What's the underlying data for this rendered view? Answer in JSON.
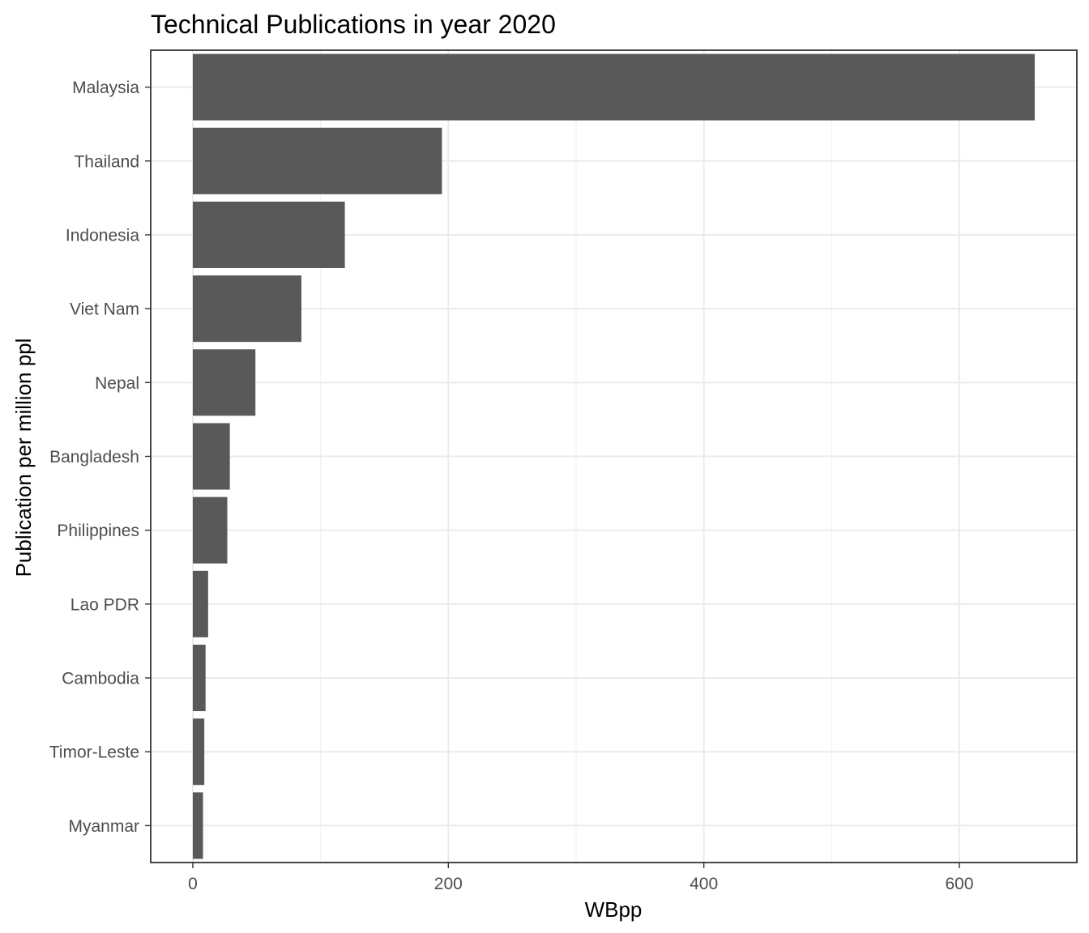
{
  "chart_data": {
    "type": "bar",
    "orientation": "horizontal",
    "title": "Technical Publications in year 2020",
    "xlabel": "WBpp",
    "ylabel": "Publication per million ppl",
    "categories": [
      "Malaysia",
      "Thailand",
      "Indonesia",
      "Viet Nam",
      "Nepal",
      "Bangladesh",
      "Philippines",
      "Lao PDR",
      "Cambodia",
      "Timor-Leste",
      "Myanmar"
    ],
    "values": [
      659,
      195,
      119,
      85,
      49,
      29,
      27,
      12,
      10,
      9,
      8
    ],
    "xlim": [
      -32.95,
      691.95
    ],
    "x_ticks": [
      0,
      200,
      400,
      600
    ],
    "x_tick_labels": [
      "0",
      "200",
      "400",
      "600"
    ],
    "grid": true,
    "bar_color": "#595959"
  }
}
